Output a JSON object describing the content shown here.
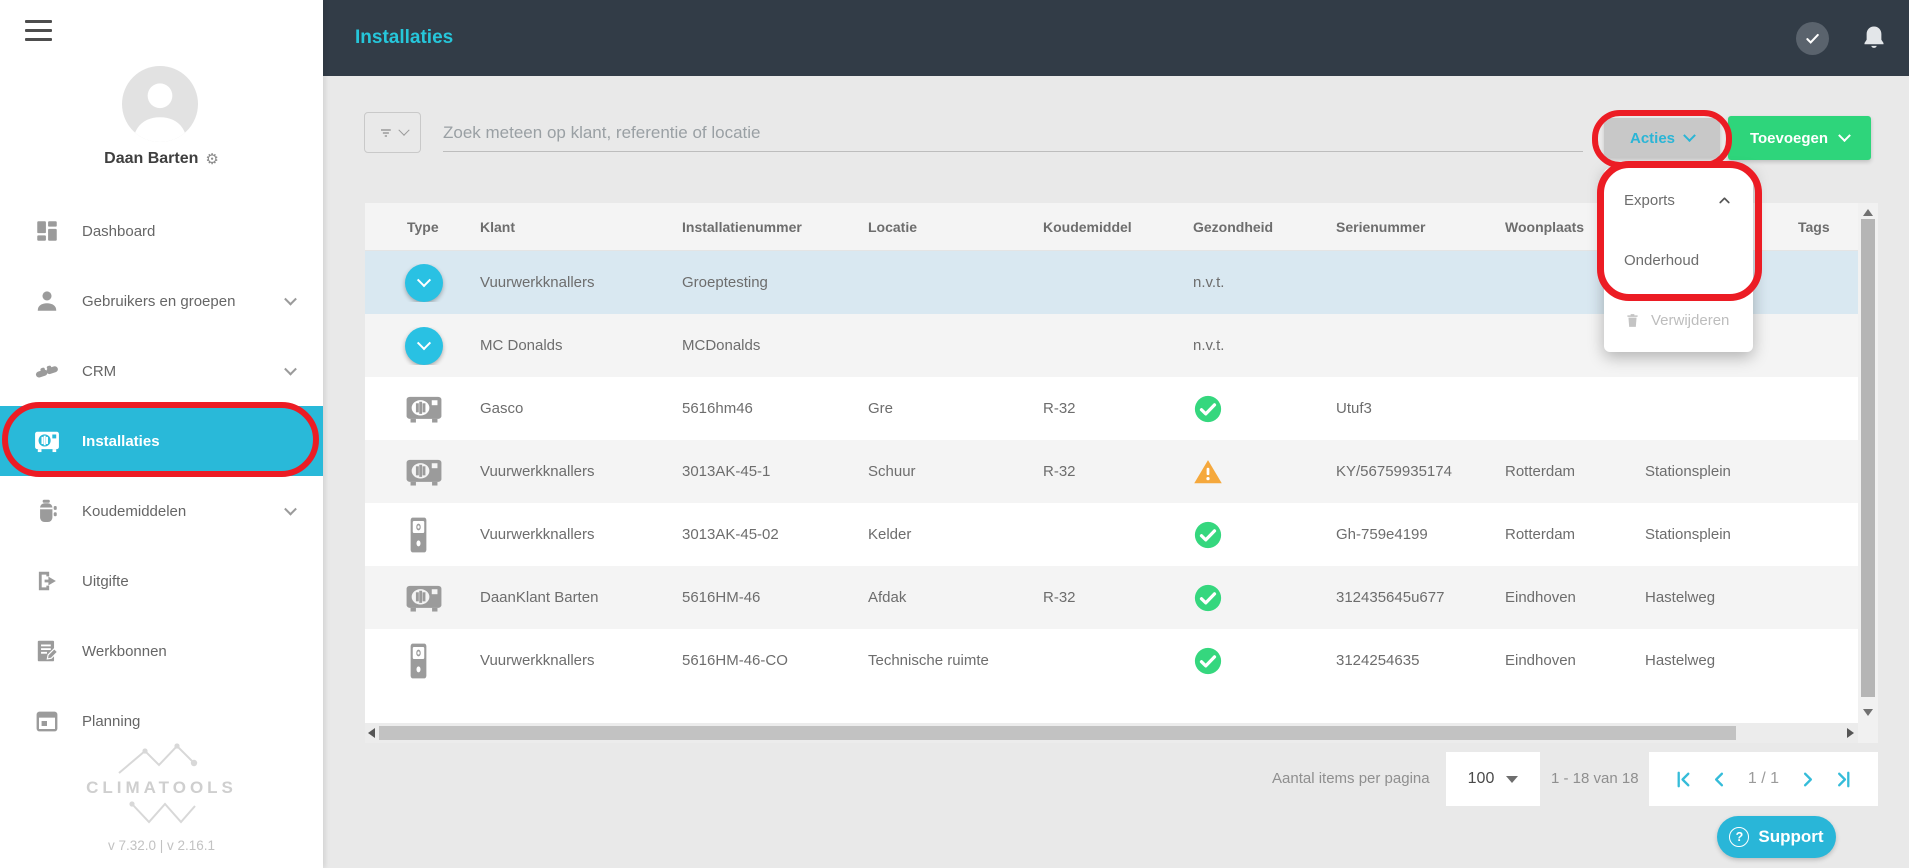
{
  "colors": {
    "accent_cyan": "#29b9d9",
    "title_cyan": "#26c6da",
    "add_green": "#2ed57b",
    "success_green": "#35d77e",
    "warning_orange": "#f5a83c",
    "annotation_red": "#ec1c24",
    "topbar_bg": "#323c47",
    "selected_row_blue": "#d9e8f1"
  },
  "topbar": {
    "title": "Installaties",
    "icon_names": [
      "check-circle-icon",
      "bell-icon"
    ]
  },
  "sidebar": {
    "user_name": "Daan Barten",
    "gear_glyph": "⚙",
    "items": [
      {
        "label": "Dashboard",
        "icon": "dashboard",
        "chevron": false,
        "active": false
      },
      {
        "label": "Gebruikers en groepen",
        "icon": "users",
        "chevron": true,
        "active": false
      },
      {
        "label": "CRM",
        "icon": "handshake",
        "chevron": true,
        "active": false
      },
      {
        "label": "Installaties",
        "icon": "ac-unit",
        "chevron": false,
        "active": true
      },
      {
        "label": "Koudemiddelen",
        "icon": "gas-bottle",
        "chevron": true,
        "active": false
      },
      {
        "label": "Uitgifte",
        "icon": "export",
        "chevron": false,
        "active": false
      },
      {
        "label": "Werkbonnen",
        "icon": "work-order",
        "chevron": false,
        "active": false
      },
      {
        "label": "Planning",
        "icon": "calendar",
        "chevron": false,
        "active": false
      }
    ],
    "logo_text": "CLIMATOOLS",
    "version": "v 7.32.0  | v 2.16.1"
  },
  "toolbar": {
    "search_placeholder": "Zoek meteen op klant, referentie of locatie",
    "actions_label": "Acties",
    "add_label": "Toevoegen"
  },
  "actions_menu": {
    "items": [
      {
        "label": "Exports",
        "trailing_icon": "chevron-up",
        "disabled": false
      },
      {
        "label": "Onderhoud",
        "trailing_icon": "",
        "disabled": false
      },
      {
        "label": "Verwijderen",
        "leading_icon": "trash",
        "disabled": true
      }
    ]
  },
  "table": {
    "columns": [
      "Type",
      "Klant",
      "Installatienummer",
      "Locatie",
      "Koudemiddel",
      "Gezondheid",
      "Serienummer",
      "Woonplaats",
      "",
      "Tags"
    ],
    "rows": [
      {
        "icon": "expand",
        "klant": "Vuurwerkknallers",
        "installatienummer": "Groeptesting",
        "locatie": "",
        "koudemiddel": "",
        "gezondheid": "n.v.t.",
        "serienummer": "",
        "woonplaats": "",
        "adres": "",
        "tags": "",
        "selected": true
      },
      {
        "icon": "expand",
        "klant": "MC Donalds",
        "installatienummer": "MCDonalds",
        "locatie": "",
        "koudemiddel": "",
        "gezondheid": "n.v.t.",
        "serienummer": "",
        "woonplaats": "",
        "adres": "",
        "tags": "",
        "selected": false
      },
      {
        "icon": "ac-unit",
        "klant": "Gasco",
        "installatienummer": "5616hm46",
        "locatie": "Gre",
        "koudemiddel": "R-32",
        "gezondheid": "ok",
        "serienummer": "Utuf3",
        "woonplaats": "",
        "adres": "",
        "tags": "",
        "selected": false
      },
      {
        "icon": "ac-unit",
        "klant": "Vuurwerkknallers",
        "installatienummer": "3013AK-45-1",
        "locatie": "Schuur",
        "koudemiddel": "R-32",
        "gezondheid": "warning",
        "serienummer": "KY/56759935174",
        "woonplaats": "Rotterdam",
        "adres": "Stationsplein",
        "tags": "",
        "selected": false
      },
      {
        "icon": "boiler",
        "klant": "Vuurwerkknallers",
        "installatienummer": "3013AK-45-02",
        "locatie": "Kelder",
        "koudemiddel": "",
        "gezondheid": "ok",
        "serienummer": "Gh-759e4199",
        "woonplaats": "Rotterdam",
        "adres": "Stationsplein",
        "tags": "",
        "selected": false
      },
      {
        "icon": "ac-unit",
        "klant": "DaanKlant Barten",
        "installatienummer": "5616HM-46",
        "locatie": "Afdak",
        "koudemiddel": "R-32",
        "gezondheid": "ok",
        "serienummer": "312435645u677",
        "woonplaats": "Eindhoven",
        "adres": "Hastelweg",
        "tags": "",
        "selected": false
      },
      {
        "icon": "boiler",
        "klant": "Vuurwerkknallers",
        "installatienummer": "5616HM-46-CO",
        "locatie": "Technische ruimte",
        "koudemiddel": "",
        "gezondheid": "ok",
        "serienummer": "3124254635",
        "woonplaats": "Eindhoven",
        "adres": "Hastelweg",
        "tags": "",
        "selected": false
      }
    ],
    "status_icon_names": {
      "ok": "green-check-circle-icon",
      "warning": "orange-warning-triangle-icon",
      "expand": "cyan-expand-chevron-icon"
    }
  },
  "pagination": {
    "items_per_page_label": "Aantal items per pagina",
    "page_size": "100",
    "range_label": "1 - 18 van 18",
    "page_indicator": "1 / 1"
  },
  "support": {
    "label": "Support",
    "icon_glyph": "?"
  }
}
